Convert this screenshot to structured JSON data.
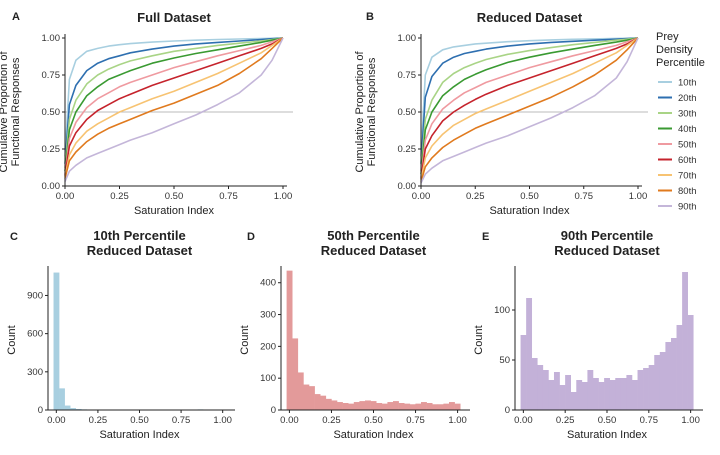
{
  "chart_data": [
    {
      "panel": "A",
      "type": "line",
      "title": "Full Dataset",
      "xlabel": "Saturation Index",
      "ylabel": [
        "Cumulative Proportion of",
        "Functional Responses"
      ],
      "xlim": [
        0,
        1
      ],
      "ylim": [
        0,
        1
      ],
      "xticks": [
        "0.00",
        "0.25",
        "0.50",
        "0.75",
        "1.00"
      ],
      "yticks": [
        "0.00",
        "0.25",
        "0.50",
        "0.75",
        "1.00"
      ],
      "reference_line_y": 0.5,
      "x": [
        0,
        0.02,
        0.05,
        0.1,
        0.15,
        0.2,
        0.25,
        0.3,
        0.4,
        0.5,
        0.6,
        0.7,
        0.8,
        0.9,
        0.95,
        1
      ],
      "series": [
        {
          "name": "10th",
          "values": [
            0.2,
            0.72,
            0.85,
            0.91,
            0.93,
            0.945,
            0.955,
            0.962,
            0.972,
            0.98,
            0.985,
            0.99,
            0.993,
            0.996,
            0.998,
            1
          ]
        },
        {
          "name": "20th",
          "values": [
            0.15,
            0.55,
            0.68,
            0.78,
            0.83,
            0.86,
            0.88,
            0.9,
            0.925,
            0.945,
            0.96,
            0.97,
            0.98,
            0.99,
            0.995,
            1
          ]
        },
        {
          "name": "30th",
          "values": [
            0.12,
            0.45,
            0.58,
            0.69,
            0.75,
            0.79,
            0.82,
            0.845,
            0.88,
            0.91,
            0.93,
            0.95,
            0.965,
            0.98,
            0.99,
            1
          ]
        },
        {
          "name": "40th",
          "values": [
            0.1,
            0.38,
            0.5,
            0.61,
            0.67,
            0.72,
            0.75,
            0.78,
            0.83,
            0.865,
            0.895,
            0.92,
            0.945,
            0.97,
            0.985,
            1
          ]
        },
        {
          "name": "50th",
          "values": [
            0.08,
            0.32,
            0.43,
            0.53,
            0.59,
            0.63,
            0.67,
            0.7,
            0.75,
            0.8,
            0.84,
            0.88,
            0.915,
            0.95,
            0.975,
            1
          ]
        },
        {
          "name": "60th",
          "values": [
            0.07,
            0.27,
            0.36,
            0.45,
            0.51,
            0.55,
            0.59,
            0.62,
            0.68,
            0.73,
            0.78,
            0.83,
            0.88,
            0.93,
            0.96,
            1
          ]
        },
        {
          "name": "70th",
          "values": [
            0.06,
            0.21,
            0.29,
            0.37,
            0.42,
            0.46,
            0.5,
            0.53,
            0.59,
            0.64,
            0.7,
            0.76,
            0.83,
            0.9,
            0.95,
            1
          ]
        },
        {
          "name": "80th",
          "values": [
            0.05,
            0.17,
            0.23,
            0.3,
            0.35,
            0.39,
            0.42,
            0.45,
            0.51,
            0.56,
            0.62,
            0.68,
            0.76,
            0.86,
            0.93,
            1
          ]
        },
        {
          "name": "90th",
          "values": [
            0.03,
            0.1,
            0.14,
            0.19,
            0.22,
            0.25,
            0.28,
            0.31,
            0.36,
            0.42,
            0.48,
            0.55,
            0.63,
            0.75,
            0.85,
            1
          ]
        }
      ]
    },
    {
      "panel": "B",
      "type": "line",
      "title": "Reduced Dataset",
      "xlabel": "Saturation Index",
      "ylabel": [
        "Cumulative Proportion of",
        "Functional Responses"
      ],
      "xlim": [
        0,
        1
      ],
      "ylim": [
        0,
        1
      ],
      "xticks": [
        "0.00",
        "0.25",
        "0.50",
        "0.75",
        "1.00"
      ],
      "yticks": [
        "0.00",
        "0.25",
        "0.50",
        "0.75",
        "1.00"
      ],
      "reference_line_y": 0.5,
      "x": [
        0,
        0.02,
        0.05,
        0.1,
        0.15,
        0.2,
        0.25,
        0.3,
        0.4,
        0.5,
        0.6,
        0.7,
        0.8,
        0.9,
        0.95,
        1
      ],
      "series": [
        {
          "name": "10th",
          "values": [
            0.2,
            0.75,
            0.87,
            0.92,
            0.94,
            0.95,
            0.96,
            0.965,
            0.975,
            0.982,
            0.987,
            0.991,
            0.994,
            0.997,
            0.998,
            1
          ]
        },
        {
          "name": "20th",
          "values": [
            0.15,
            0.6,
            0.74,
            0.83,
            0.87,
            0.895,
            0.91,
            0.925,
            0.945,
            0.96,
            0.97,
            0.978,
            0.985,
            0.992,
            0.996,
            1
          ]
        },
        {
          "name": "30th",
          "values": [
            0.1,
            0.45,
            0.58,
            0.7,
            0.76,
            0.8,
            0.83,
            0.855,
            0.89,
            0.915,
            0.935,
            0.955,
            0.97,
            0.985,
            0.992,
            1
          ]
        },
        {
          "name": "40th",
          "values": [
            0.08,
            0.38,
            0.5,
            0.61,
            0.67,
            0.72,
            0.755,
            0.785,
            0.835,
            0.87,
            0.9,
            0.925,
            0.95,
            0.972,
            0.985,
            1
          ]
        },
        {
          "name": "50th",
          "values": [
            0.06,
            0.31,
            0.42,
            0.52,
            0.58,
            0.63,
            0.665,
            0.7,
            0.75,
            0.8,
            0.84,
            0.88,
            0.915,
            0.95,
            0.975,
            1
          ]
        },
        {
          "name": "60th",
          "values": [
            0.05,
            0.25,
            0.34,
            0.44,
            0.5,
            0.545,
            0.585,
            0.62,
            0.68,
            0.73,
            0.78,
            0.83,
            0.88,
            0.93,
            0.96,
            1
          ]
        },
        {
          "name": "70th",
          "values": [
            0.04,
            0.19,
            0.27,
            0.35,
            0.41,
            0.45,
            0.49,
            0.52,
            0.58,
            0.64,
            0.7,
            0.76,
            0.83,
            0.9,
            0.95,
            1
          ]
        },
        {
          "name": "80th",
          "values": [
            0.03,
            0.13,
            0.19,
            0.26,
            0.31,
            0.35,
            0.39,
            0.42,
            0.48,
            0.54,
            0.6,
            0.67,
            0.75,
            0.85,
            0.92,
            1
          ]
        },
        {
          "name": "90th",
          "values": [
            0.02,
            0.08,
            0.12,
            0.17,
            0.2,
            0.23,
            0.26,
            0.29,
            0.34,
            0.4,
            0.46,
            0.53,
            0.61,
            0.73,
            0.84,
            1
          ]
        }
      ]
    },
    {
      "panel": "C",
      "type": "bar",
      "title": [
        "10th Percentile",
        "Reduced Dataset"
      ],
      "xlabel": "Saturation Index",
      "ylabel": "Count",
      "color": "#a8cfe0",
      "xlim": [
        -0.05,
        1.05
      ],
      "ylim": [
        0,
        1100
      ],
      "xticks": [
        "0.00",
        "0.25",
        "0.50",
        "0.75",
        "1.00"
      ],
      "yticks": [
        "0",
        "300",
        "600",
        "900"
      ],
      "bin_width": 0.0333,
      "bin_start": -0.0167,
      "values": [
        1080,
        170,
        35,
        15,
        8,
        5,
        4,
        3,
        3,
        2,
        2,
        2,
        2,
        2,
        2,
        1,
        1,
        1,
        1,
        2,
        1,
        1,
        3,
        1,
        1,
        1,
        5,
        1,
        2,
        1,
        3
      ]
    },
    {
      "panel": "D",
      "type": "bar",
      "title": [
        "50th Percentile",
        "Reduced Dataset"
      ],
      "xlabel": "Saturation Index",
      "ylabel": "Count",
      "color": "#e39a9a",
      "xlim": [
        -0.05,
        1.05
      ],
      "ylim": [
        0,
        440
      ],
      "xticks": [
        "0.00",
        "0.25",
        "0.50",
        "0.75",
        "1.00"
      ],
      "yticks": [
        "0",
        "100",
        "200",
        "300",
        "400"
      ],
      "bin_width": 0.0333,
      "bin_start": -0.0167,
      "values": [
        438,
        225,
        118,
        80,
        75,
        50,
        45,
        35,
        30,
        25,
        22,
        20,
        25,
        28,
        30,
        28,
        22,
        20,
        25,
        28,
        22,
        20,
        18,
        20,
        25,
        22,
        18,
        18,
        20,
        25,
        20
      ]
    },
    {
      "panel": "E",
      "type": "bar",
      "title": [
        "90th Percentile",
        "Reduced Dataset"
      ],
      "xlabel": "Saturation Index",
      "ylabel": "Count",
      "color": "#c3b1d8",
      "xlim": [
        -0.05,
        1.05
      ],
      "ylim": [
        0,
        140
      ],
      "xticks": [
        "0.00",
        "0.25",
        "0.50",
        "0.75",
        "1.00"
      ],
      "yticks": [
        "0",
        "50",
        "100"
      ],
      "bin_width": 0.0333,
      "bin_start": -0.0167,
      "values": [
        75,
        112,
        52,
        45,
        40,
        30,
        38,
        25,
        35,
        18,
        30,
        28,
        40,
        32,
        28,
        32,
        30,
        32,
        32,
        35,
        30,
        40,
        42,
        45,
        55,
        58,
        68,
        72,
        85,
        138,
        95
      ]
    }
  ],
  "legend": {
    "title": [
      "Prey",
      "Density",
      "Percentile"
    ],
    "entries": [
      {
        "label": "10th",
        "color": "#a8cfe0"
      },
      {
        "label": "20th",
        "color": "#2e6fb0"
      },
      {
        "label": "30th",
        "color": "#a9d486"
      },
      {
        "label": "40th",
        "color": "#3a9a32"
      },
      {
        "label": "50th",
        "color": "#ef9aa0"
      },
      {
        "label": "60th",
        "color": "#c5232c"
      },
      {
        "label": "70th",
        "color": "#f7c372"
      },
      {
        "label": "80th",
        "color": "#e07a1e"
      },
      {
        "label": "90th",
        "color": "#c4b6d9"
      }
    ]
  }
}
